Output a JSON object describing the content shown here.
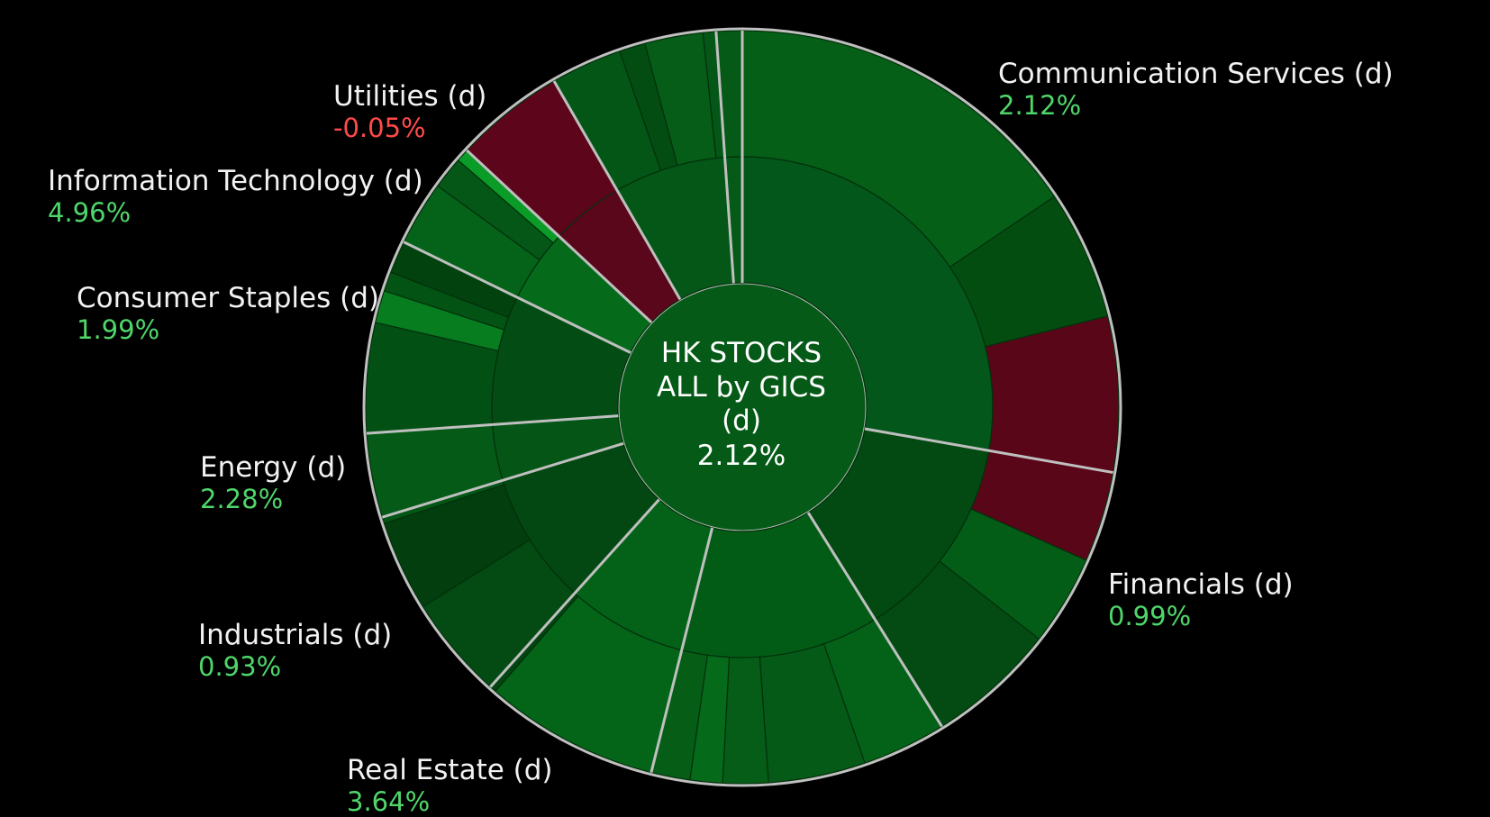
{
  "colors": {
    "background": "#000000",
    "ring_border": "#bfbfbf",
    "positive_text": "#4fd66a",
    "negative_text": "#ff4a4a",
    "label_text": "#f2f2f2"
  },
  "chart_data": {
    "type": "sunburst",
    "center": {
      "title_lines": [
        "HK STOCKS",
        "ALL by GICS",
        "(d)"
      ],
      "value": "2.12%"
    },
    "sectors": [
      {
        "name": "Communication Services (d)",
        "value": "2.12%",
        "change": 2.12,
        "label_side": "right",
        "mid": {
          "start": 0,
          "end": 100,
          "color": "#04571a"
        },
        "outer": [
          {
            "start": 0,
            "end": 56,
            "color": "#055f16"
          },
          {
            "start": 56,
            "end": 76,
            "color": "#044d11"
          }
        ]
      },
      {
        "name": "Financials (d)",
        "value": "0.99%",
        "change": 0.99,
        "label_side": "right",
        "mid": {
          "start": 100,
          "end": 148,
          "color": "#034912"
        },
        "outer": [
          {
            "start": 76,
            "end": 114,
            "color": "#5a0619"
          },
          {
            "start": 114,
            "end": 128,
            "color": "#035d17"
          },
          {
            "start": 128,
            "end": 148,
            "color": "#034b12"
          }
        ]
      },
      {
        "name": "Real Estate (d)",
        "value": "3.64%",
        "change": 3.64,
        "label_side": "left",
        "mid": {
          "start": 148,
          "end": 194,
          "color": "#035c16"
        },
        "outer": [
          {
            "start": 148,
            "end": 161,
            "color": "#046218"
          },
          {
            "start": 161,
            "end": 176,
            "color": "#045a16"
          },
          {
            "start": 176,
            "end": 183,
            "color": "#055d17"
          },
          {
            "start": 183,
            "end": 188,
            "color": "#066a1b"
          },
          {
            "start": 188,
            "end": 194,
            "color": "#055d16"
          }
        ]
      },
      {
        "name": "Industrials (d)",
        "value": "0.93%",
        "change": 0.93,
        "label_side": "left",
        "mid": {
          "start": 194,
          "end": 222,
          "color": "#046218"
        },
        "outer": [
          {
            "start": 194,
            "end": 221,
            "color": "#046418"
          },
          {
            "start": 221,
            "end": 222,
            "color": "#024510"
          }
        ]
      },
      {
        "name": "Energy (d)",
        "value": "2.28%",
        "change": 2.28,
        "label_side": "left",
        "mid": {
          "start": 222,
          "end": 253,
          "color": "#034812"
        },
        "outer": [
          {
            "start": 222,
            "end": 238,
            "color": "#034b12"
          },
          {
            "start": 238,
            "end": 252,
            "color": "#023e0e"
          },
          {
            "start": 252,
            "end": 253,
            "color": "#035515"
          }
        ]
      },
      {
        "name": "Consumer Staples (d)",
        "value": "1.99%",
        "change": 1.99,
        "label_side": "left",
        "mid": {
          "start": 253,
          "end": 266,
          "color": "#045516"
        },
        "outer": [
          {
            "start": 253,
            "end": 266,
            "color": "#045a16"
          }
        ]
      },
      {
        "name": "",
        "value": "",
        "change": null,
        "label_side": "left",
        "mid": {
          "start": 266,
          "end": 296,
          "color": "#034c13"
        },
        "outer": [
          {
            "start": 266,
            "end": 283,
            "color": "#035015"
          },
          {
            "start": 283,
            "end": 288,
            "color": "#087d20"
          },
          {
            "start": 288,
            "end": 291,
            "color": "#035314"
          },
          {
            "start": 291,
            "end": 296,
            "color": "#02420f"
          }
        ]
      },
      {
        "name": "Information Technology (d)",
        "value": "4.96%",
        "change": 4.96,
        "label_side": "left",
        "mid": {
          "start": 296,
          "end": 313,
          "color": "#066a1b"
        },
        "outer": [
          {
            "start": 296,
            "end": 306,
            "color": "#056219"
          },
          {
            "start": 306,
            "end": 311,
            "color": "#045716"
          },
          {
            "start": 311,
            "end": 313,
            "color": "#0a9c27"
          }
        ]
      },
      {
        "name": "Utilities (d)",
        "value": "-0.05%",
        "change": -0.05,
        "label_side": "left",
        "mid": {
          "start": 313,
          "end": 330,
          "color": "#5a061b"
        },
        "outer": [
          {
            "start": 313,
            "end": 330,
            "color": "#5d061b"
          }
        ]
      },
      {
        "name": "",
        "value": "",
        "change": null,
        "label_side": "left",
        "mid": {
          "start": 330,
          "end": 356,
          "color": "#045716"
        },
        "outer": [
          {
            "start": 330,
            "end": 341,
            "color": "#045617"
          },
          {
            "start": 341,
            "end": 345,
            "color": "#034d13"
          },
          {
            "start": 345,
            "end": 354,
            "color": "#055d17"
          },
          {
            "start": 354,
            "end": 356,
            "color": "#045716"
          }
        ]
      },
      {
        "name": "",
        "value": "",
        "change": null,
        "label_side": "left",
        "mid": {
          "start": 356,
          "end": 360,
          "color": "#045a16"
        },
        "outer": [
          {
            "start": 356,
            "end": 360,
            "color": "#045a16"
          }
        ]
      }
    ]
  }
}
